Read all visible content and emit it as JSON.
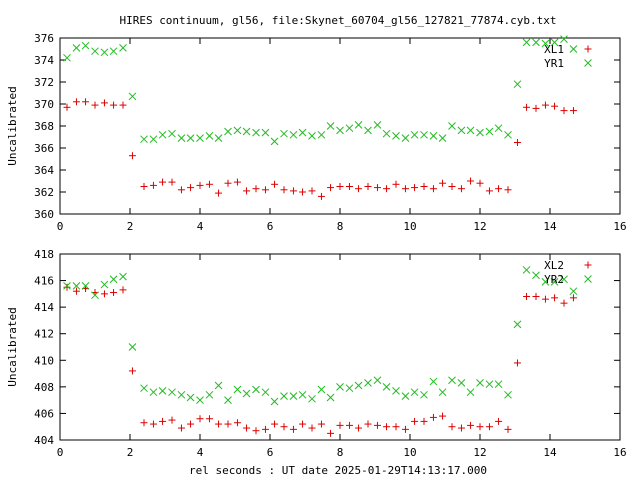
{
  "title": "HIRES continuum, gl56, file:Skynet_60704_gl56_127821_77874.cyb.txt",
  "xlabel": "rel seconds : UT date 2025-01-29T14:13:17.000",
  "colors": {
    "red": "#dd0000",
    "green": "#22bb22",
    "axis": "#000000"
  },
  "chart_data": [
    {
      "type": "scatter",
      "ylabel": "Uncalibrated",
      "xlim": [
        0,
        16
      ],
      "ylim": [
        360,
        376
      ],
      "xticks": [
        0,
        2,
        4,
        6,
        8,
        10,
        12,
        14,
        16
      ],
      "yticks": [
        360,
        362,
        364,
        366,
        368,
        370,
        372,
        374,
        376
      ],
      "legend_position": "top-right",
      "series": [
        {
          "name": "XL1",
          "marker": "plus",
          "color": "#dd0000",
          "x": [
            0.2,
            0.47,
            0.73,
            1.0,
            1.27,
            1.53,
            1.8,
            2.07,
            2.4,
            2.67,
            2.93,
            3.2,
            3.47,
            3.73,
            4.0,
            4.27,
            4.53,
            4.8,
            5.07,
            5.33,
            5.6,
            5.87,
            6.13,
            6.4,
            6.67,
            6.93,
            7.2,
            7.47,
            7.73,
            8.0,
            8.27,
            8.53,
            8.8,
            9.07,
            9.33,
            9.6,
            9.87,
            10.13,
            10.4,
            10.67,
            10.93,
            11.2,
            11.47,
            11.73,
            12.0,
            12.27,
            12.53,
            12.8,
            13.07,
            13.33,
            13.6,
            13.87,
            14.13,
            14.4,
            14.67
          ],
          "y": [
            369.7,
            370.2,
            370.2,
            369.9,
            370.1,
            369.9,
            369.9,
            365.3,
            362.5,
            362.6,
            362.9,
            362.9,
            362.2,
            362.4,
            362.6,
            362.7,
            361.9,
            362.8,
            362.9,
            362.1,
            362.3,
            362.2,
            362.7,
            362.2,
            362.1,
            362.0,
            362.1,
            361.6,
            362.4,
            362.5,
            362.5,
            362.3,
            362.5,
            362.4,
            362.3,
            362.7,
            362.3,
            362.4,
            362.5,
            362.3,
            362.8,
            362.5,
            362.3,
            363.0,
            362.8,
            362.1,
            362.3,
            362.2,
            366.5,
            369.7,
            369.6,
            369.9,
            369.8,
            369.4,
            369.4
          ]
        },
        {
          "name": "YR1",
          "marker": "cross",
          "color": "#22bb22",
          "x": [
            0.2,
            0.47,
            0.73,
            1.0,
            1.27,
            1.53,
            1.8,
            2.07,
            2.4,
            2.67,
            2.93,
            3.2,
            3.47,
            3.73,
            4.0,
            4.27,
            4.53,
            4.8,
            5.07,
            5.33,
            5.6,
            5.87,
            6.13,
            6.4,
            6.67,
            6.93,
            7.2,
            7.47,
            7.73,
            8.0,
            8.27,
            8.53,
            8.8,
            9.07,
            9.33,
            9.6,
            9.87,
            10.13,
            10.4,
            10.67,
            10.93,
            11.2,
            11.47,
            11.73,
            12.0,
            12.27,
            12.53,
            12.8,
            13.07,
            13.33,
            13.6,
            13.87,
            14.13,
            14.4,
            14.67
          ],
          "y": [
            374.2,
            375.1,
            375.3,
            374.8,
            374.7,
            374.8,
            375.1,
            370.7,
            366.8,
            366.8,
            367.2,
            367.3,
            366.9,
            366.9,
            366.9,
            367.1,
            366.9,
            367.5,
            367.6,
            367.5,
            367.4,
            367.4,
            366.6,
            367.3,
            367.2,
            367.4,
            367.1,
            367.2,
            368.0,
            367.6,
            367.8,
            368.1,
            367.6,
            368.1,
            367.3,
            367.1,
            366.9,
            367.2,
            367.2,
            367.1,
            366.9,
            368.0,
            367.6,
            367.6,
            367.4,
            367.5,
            367.8,
            367.2,
            371.8,
            375.6,
            375.6,
            375.5,
            375.6,
            375.9,
            375.0
          ]
        }
      ]
    },
    {
      "type": "scatter",
      "ylabel": "Uncalibrated",
      "xlim": [
        0,
        16
      ],
      "ylim": [
        404,
        418
      ],
      "xticks": [
        0,
        2,
        4,
        6,
        8,
        10,
        12,
        14,
        16
      ],
      "yticks": [
        404,
        406,
        408,
        410,
        412,
        414,
        416,
        418
      ],
      "legend_position": "top-right",
      "series": [
        {
          "name": "XL2",
          "marker": "plus",
          "color": "#dd0000",
          "x": [
            0.2,
            0.47,
            0.73,
            1.0,
            1.27,
            1.53,
            1.8,
            2.07,
            2.4,
            2.67,
            2.93,
            3.2,
            3.47,
            3.73,
            4.0,
            4.27,
            4.53,
            4.8,
            5.07,
            5.33,
            5.6,
            5.87,
            6.13,
            6.4,
            6.67,
            6.93,
            7.2,
            7.47,
            7.73,
            8.0,
            8.27,
            8.53,
            8.8,
            9.07,
            9.33,
            9.6,
            9.87,
            10.13,
            10.4,
            10.67,
            10.93,
            11.2,
            11.47,
            11.73,
            12.0,
            12.27,
            12.53,
            12.8,
            13.07,
            13.33,
            13.6,
            13.87,
            14.13,
            14.4,
            14.67
          ],
          "y": [
            415.5,
            415.2,
            415.4,
            415.1,
            415.0,
            415.1,
            415.3,
            409.2,
            405.3,
            405.2,
            405.4,
            405.5,
            404.9,
            405.2,
            405.6,
            405.6,
            405.2,
            405.2,
            405.3,
            404.9,
            404.7,
            404.8,
            405.2,
            405.0,
            404.8,
            405.2,
            404.9,
            405.2,
            404.5,
            405.1,
            405.1,
            404.9,
            405.2,
            405.1,
            405.0,
            405.0,
            404.8,
            405.4,
            405.4,
            405.7,
            405.8,
            405.0,
            404.9,
            405.1,
            405.0,
            405.0,
            405.4,
            404.8,
            409.8,
            414.8,
            414.8,
            414.6,
            414.7,
            414.3,
            414.7
          ]
        },
        {
          "name": "YR2",
          "marker": "cross",
          "color": "#22bb22",
          "x": [
            0.2,
            0.47,
            0.73,
            1.0,
            1.27,
            1.53,
            1.8,
            2.07,
            2.4,
            2.67,
            2.93,
            3.2,
            3.47,
            3.73,
            4.0,
            4.27,
            4.53,
            4.8,
            5.07,
            5.33,
            5.6,
            5.87,
            6.13,
            6.4,
            6.67,
            6.93,
            7.2,
            7.47,
            7.73,
            8.0,
            8.27,
            8.53,
            8.8,
            9.07,
            9.33,
            9.6,
            9.87,
            10.13,
            10.4,
            10.67,
            10.93,
            11.2,
            11.47,
            11.73,
            12.0,
            12.27,
            12.53,
            12.8,
            13.07,
            13.33,
            13.6,
            13.87,
            14.13,
            14.4,
            14.67
          ],
          "y": [
            415.6,
            415.6,
            415.6,
            414.9,
            415.7,
            416.1,
            416.3,
            411.0,
            407.9,
            407.6,
            407.7,
            407.6,
            407.4,
            407.2,
            407.0,
            407.4,
            408.1,
            407.0,
            407.8,
            407.5,
            407.8,
            407.6,
            406.9,
            407.3,
            407.3,
            407.4,
            407.1,
            407.8,
            407.2,
            408.0,
            407.9,
            408.1,
            408.3,
            408.5,
            408.0,
            407.7,
            407.3,
            407.6,
            407.4,
            408.4,
            407.6,
            408.5,
            408.3,
            407.6,
            408.3,
            408.2,
            408.2,
            407.4,
            412.7,
            416.8,
            416.4,
            415.9,
            415.9,
            416.1,
            415.2
          ]
        }
      ]
    }
  ]
}
